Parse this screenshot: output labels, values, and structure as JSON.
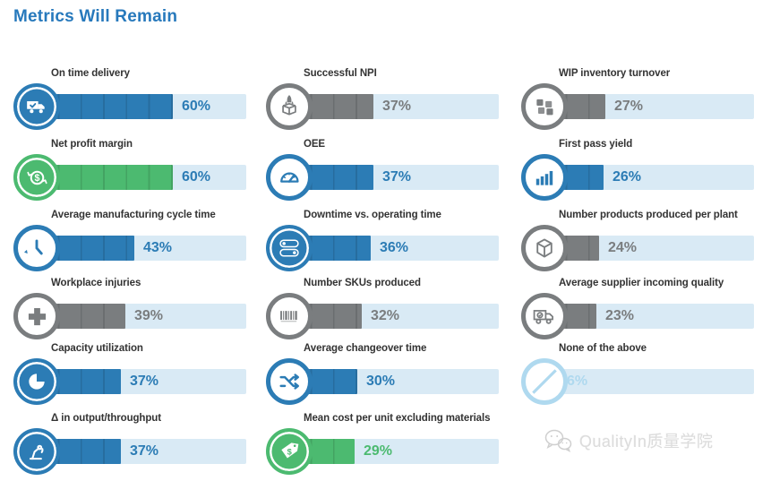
{
  "title": "Metrics Will Remain",
  "watermark": {
    "text": "QualityIn质量学院",
    "icon": "wechat-icon"
  },
  "colors": {
    "blue": "#2C7CB5",
    "green": "#4CBA70",
    "gray": "#7A7D7F",
    "lightblue": "#AFD9EF",
    "lightblue_fill": "#C2E2F3",
    "track": "#D9EAF5",
    "title_text": "#2779BC",
    "label_text": "#333333",
    "watermark_text": "#DCDCDC"
  },
  "chart_data": {
    "type": "bar",
    "orientation": "horizontal",
    "title": "Metrics Will Remain",
    "unit": "%",
    "xlim": [
      0,
      100
    ],
    "grid": "off",
    "legend": "none",
    "categories": [
      "On time delivery",
      "Net profit margin",
      "Average manufacturing cycle time",
      "Workplace injuries",
      "Capacity utilization",
      "Δ in output/throughput",
      "Successful NPI",
      "OEE",
      "Downtime vs. operating time",
      "Number SKUs produced",
      "Average changeover time",
      "Mean cost per unit excluding materials",
      "WIP inventory turnover",
      "First pass yield",
      "Number products produced per plant",
      "Average supplier incoming quality",
      "None of the above"
    ],
    "values": [
      60,
      60,
      43,
      39,
      37,
      37,
      37,
      37,
      36,
      32,
      30,
      29,
      27,
      26,
      24,
      23,
      6
    ],
    "value_labels": [
      "60%",
      "60%",
      "43%",
      "39%",
      "37%",
      "37%",
      "37%",
      "37%",
      "36%",
      "32%",
      "30%",
      "29%",
      "27%",
      "26%",
      "24%",
      "23%",
      "6%"
    ],
    "bar_color_keys": [
      "blue",
      "green",
      "blue",
      "gray",
      "blue",
      "blue",
      "gray",
      "blue",
      "blue",
      "gray",
      "blue",
      "green",
      "gray",
      "blue",
      "gray",
      "gray",
      "lightblue"
    ],
    "value_label_color_keys": [
      "blue",
      "blue",
      "blue",
      "gray",
      "blue",
      "blue",
      "gray",
      "blue",
      "blue",
      "gray",
      "blue",
      "green",
      "gray",
      "blue",
      "gray",
      "gray",
      "lightblue"
    ],
    "icons": [
      "delivery-truck-icon",
      "dollar-cycle-icon",
      "clock-history-icon",
      "medical-cross-icon",
      "pie-chart-icon",
      "robot-arm-icon",
      "rocket-box-icon",
      "gauge-icon",
      "toggle-switches-icon",
      "barcode-icon",
      "shuffle-icon",
      "price-tags-icon",
      "cubes-icon",
      "bar-chart-icon",
      "cube-icon",
      "supplier-truck-icon",
      "prohibition-slash-icon"
    ],
    "icon_styles": [
      "solid",
      "solid",
      "outline",
      "outline",
      "solid",
      "solid",
      "outline",
      "outline",
      "solid",
      "outline",
      "outline",
      "solid",
      "outline",
      "outline",
      "outline",
      "outline",
      "outline"
    ]
  },
  "layout_columns": [
    [
      0,
      1,
      2,
      3,
      4,
      5
    ],
    [
      6,
      7,
      8,
      9,
      10,
      11
    ],
    [
      12,
      13,
      14,
      15,
      16
    ]
  ]
}
